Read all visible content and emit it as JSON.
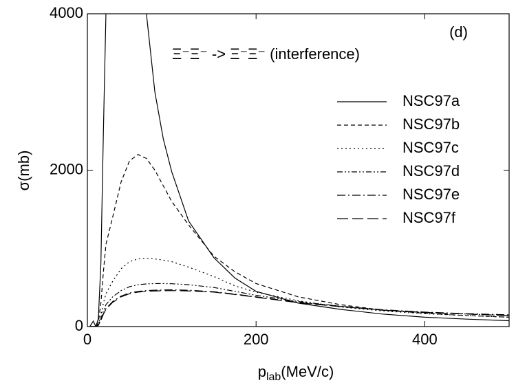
{
  "chart_data": {
    "type": "line",
    "annotation": "Ξ⁻Ξ⁻ -> Ξ⁻Ξ⁻ (interference)",
    "panel_label": "(d)",
    "x_label": {
      "base": "p",
      "sub": "lab",
      "rest": "(MeV/c)"
    },
    "y_label": "σ(mb)",
    "xlim": [
      0,
      500
    ],
    "xticks": [
      0,
      200,
      400
    ],
    "ylim": [
      0,
      4000
    ],
    "yticks": [
      0,
      2000,
      4000
    ],
    "x": [
      3,
      7,
      10,
      13,
      16,
      19,
      22,
      30,
      40,
      50,
      60,
      70,
      80,
      90,
      100,
      120,
      150,
      175,
      200,
      250,
      300,
      350,
      400,
      450,
      500
    ],
    "series": [
      {
        "name": "NSC97a",
        "color": "#000000",
        "dash": "none",
        "values": [
          0,
          70,
          0,
          100,
          800,
          2500,
          4000,
          null,
          null,
          null,
          null,
          4000,
          3000,
          2400,
          1980,
          1350,
          880,
          620,
          450,
          300,
          220,
          160,
          120,
          95,
          75
        ]
      },
      {
        "name": "NSC97b",
        "color": "#000000",
        "dash": "6,4",
        "values": [
          0,
          0,
          0,
          50,
          300,
          700,
          1050,
          1400,
          1850,
          2120,
          2200,
          2150,
          2000,
          1800,
          1600,
          1300,
          900,
          700,
          550,
          380,
          280,
          210,
          170,
          140,
          120
        ]
      },
      {
        "name": "NSC97c",
        "color": "#000000",
        "dash": "2,4",
        "values": [
          0,
          0,
          0,
          30,
          150,
          300,
          420,
          580,
          740,
          830,
          865,
          870,
          865,
          850,
          830,
          760,
          640,
          520,
          440,
          330,
          250,
          200,
          165,
          140,
          120
        ]
      },
      {
        "name": "NSC97d",
        "color": "#000000",
        "dash": "8,3,2,3,2,3",
        "values": [
          0,
          0,
          0,
          20,
          100,
          200,
          280,
          380,
          460,
          510,
          535,
          545,
          550,
          550,
          548,
          535,
          500,
          450,
          400,
          320,
          260,
          210,
          180,
          160,
          140
        ]
      },
      {
        "name": "NSC97e",
        "color": "#000000",
        "dash": "12,4,2,4",
        "values": [
          0,
          0,
          0,
          15,
          80,
          160,
          230,
          320,
          390,
          430,
          450,
          460,
          465,
          468,
          470,
          465,
          445,
          415,
          380,
          310,
          260,
          215,
          185,
          165,
          150
        ]
      },
      {
        "name": "NSC97f",
        "color": "#000000",
        "dash": "16,6",
        "values": [
          0,
          0,
          0,
          15,
          80,
          160,
          220,
          310,
          380,
          420,
          440,
          450,
          455,
          458,
          460,
          455,
          440,
          410,
          375,
          305,
          255,
          210,
          180,
          160,
          140
        ]
      }
    ]
  }
}
